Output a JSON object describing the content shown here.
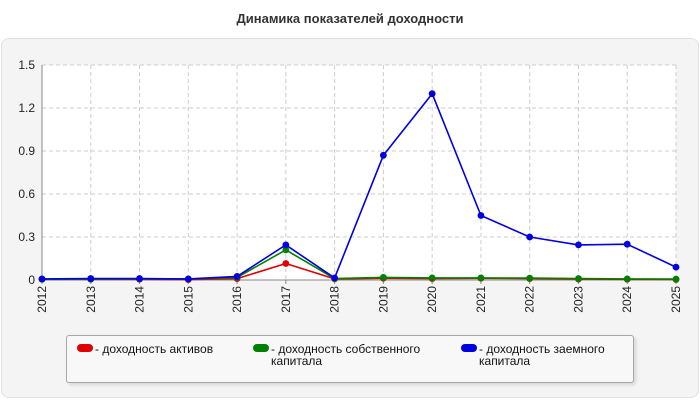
{
  "chart_data": {
    "type": "line",
    "title": "Динамика показателей доходности",
    "xlabel": "",
    "ylabel": "",
    "categories": [
      "2012",
      "2013",
      "2014",
      "2015",
      "2016",
      "2017",
      "2018",
      "2019",
      "2020",
      "2021",
      "2022",
      "2023",
      "2024",
      "2025"
    ],
    "ylim": [
      0,
      1.5
    ],
    "yticks": [
      "0",
      "0.3",
      "0.6",
      "0.9",
      "1.2",
      "1.5"
    ],
    "grid": true,
    "legend_position": "bottom",
    "series": [
      {
        "name": "- доходность активов",
        "color": "#e00000",
        "values": [
          0.005,
          0.005,
          0.005,
          0.003,
          0.01,
          0.115,
          0.008,
          0.012,
          0.01,
          0.012,
          0.01,
          0.006,
          0.005,
          0.004
        ]
      },
      {
        "name": "- доходность собственного капитала",
        "color": "#008000",
        "values": [
          0.005,
          0.006,
          0.008,
          0.006,
          0.018,
          0.21,
          0.01,
          0.018,
          0.015,
          0.015,
          0.013,
          0.01,
          0.008,
          0.006
        ]
      },
      {
        "name": "- доходность заемного капитала",
        "color": "#0000e0",
        "values": [
          0.008,
          0.01,
          0.01,
          0.008,
          0.025,
          0.245,
          0.015,
          0.87,
          1.3,
          0.45,
          0.3,
          0.245,
          0.25,
          0.09
        ]
      }
    ]
  }
}
